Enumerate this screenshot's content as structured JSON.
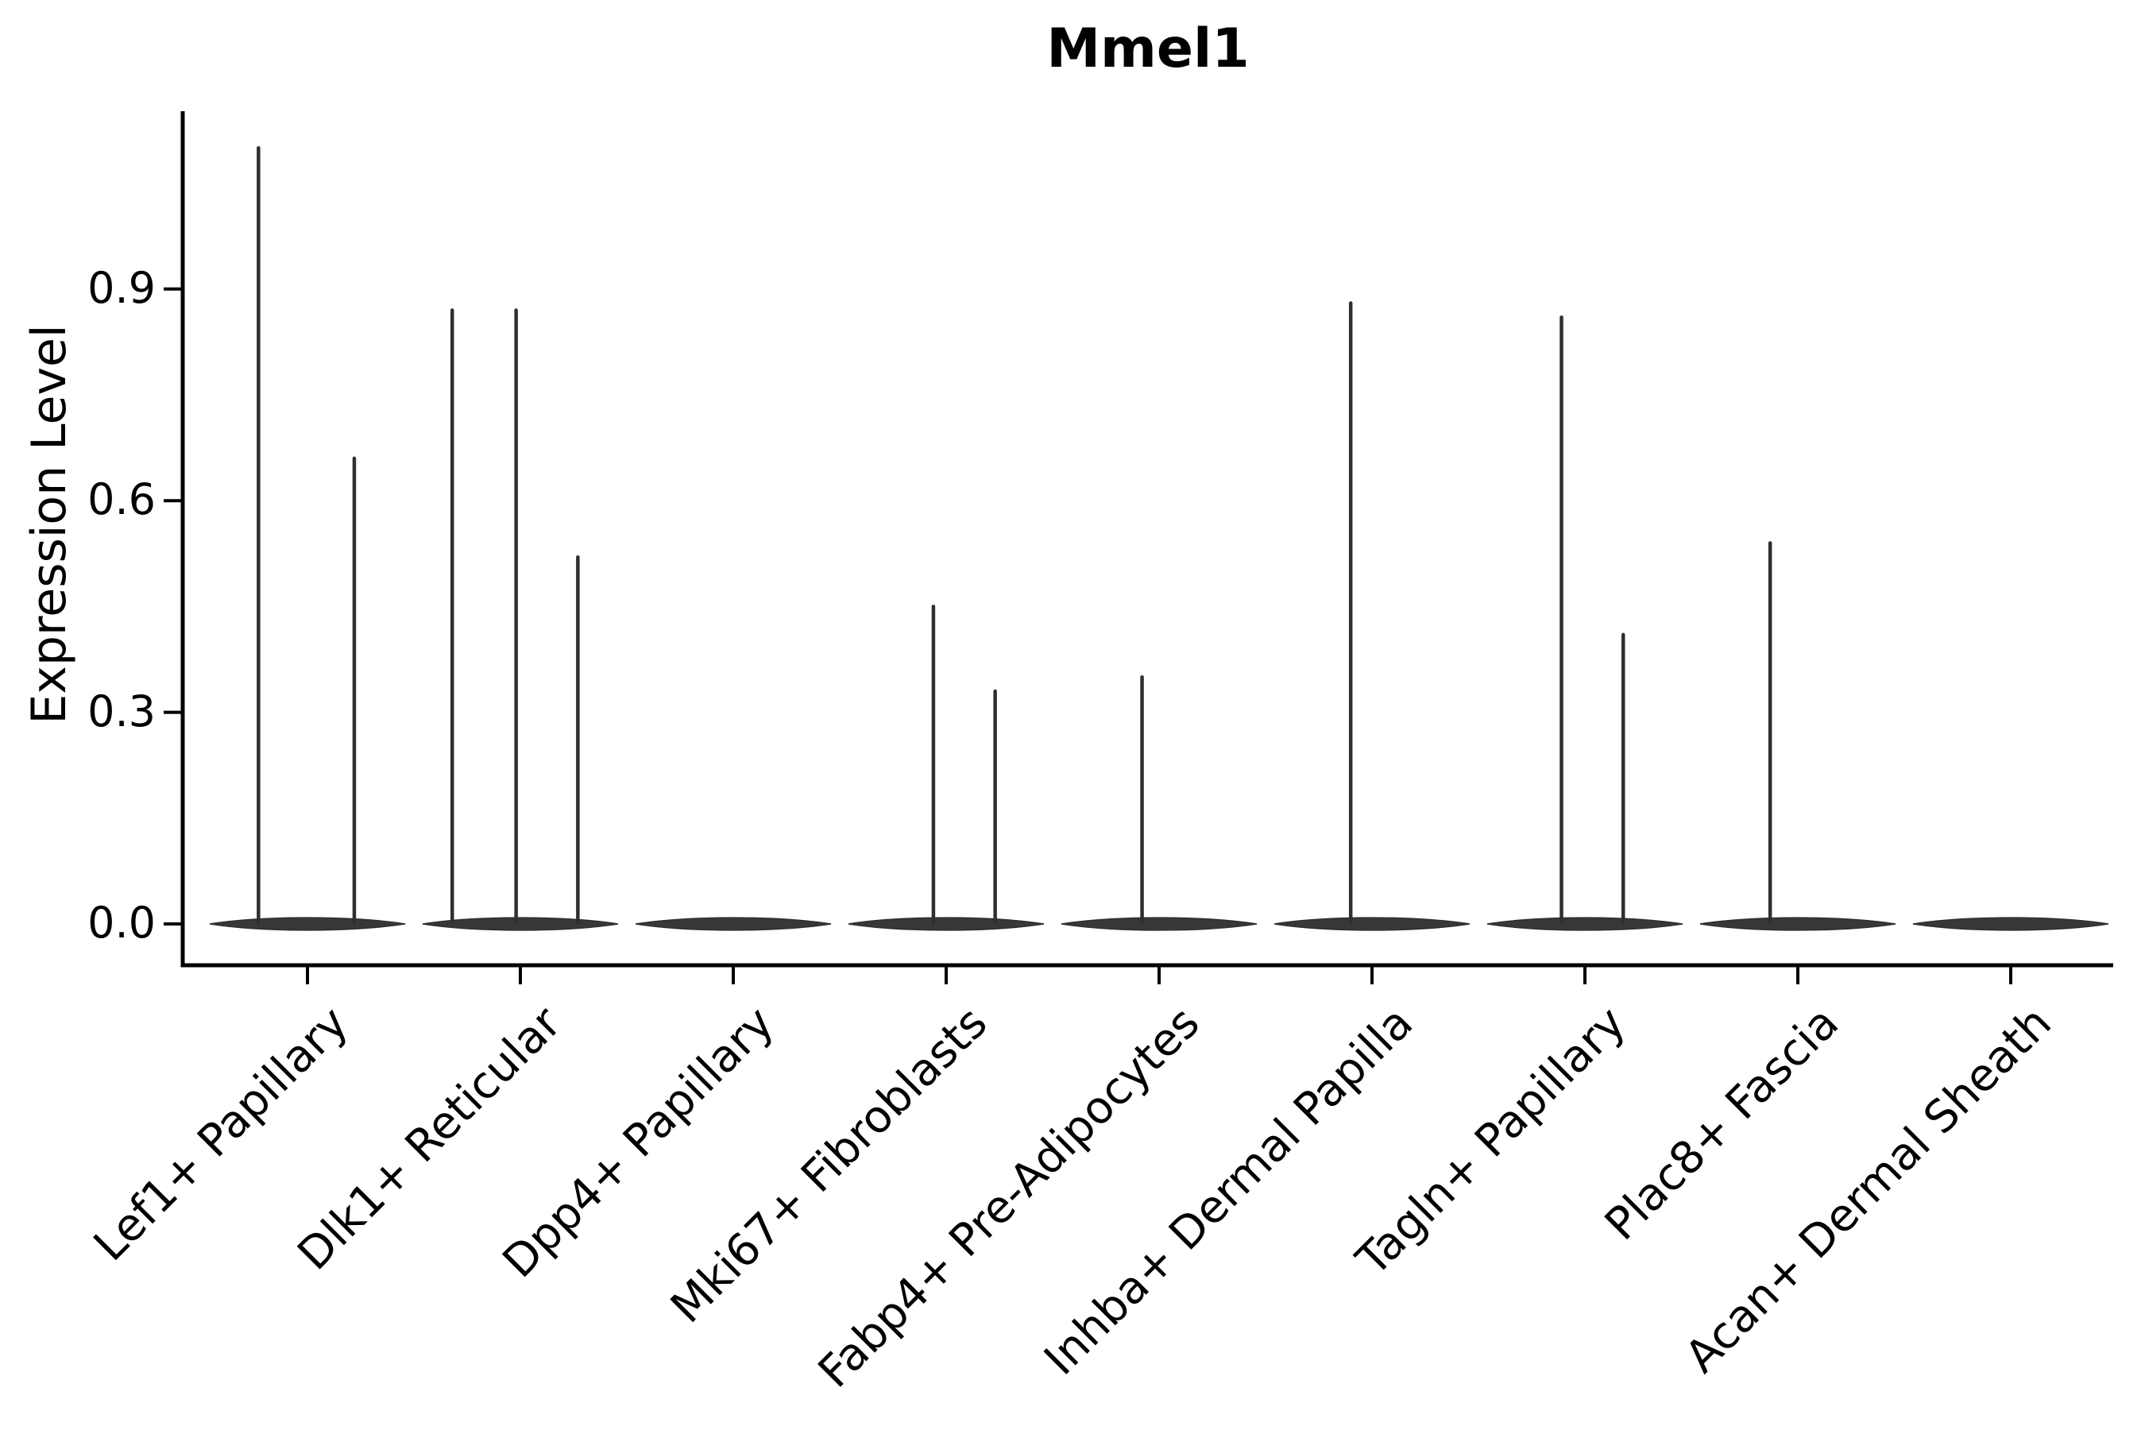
{
  "figure": {
    "background": "#ffffff",
    "text_color": "#000000",
    "violin_fill_color": "#383838",
    "spike_color": "#2f2f2f",
    "axis_color": "#000000"
  },
  "chart_data": {
    "type": "violin",
    "title": "Mmel1",
    "ylabel": "Expression Level",
    "xlabel": "",
    "grid": false,
    "legend": "none",
    "ylim": [
      -0.05,
      1.19
    ],
    "yticks": [
      {
        "label": "0.0",
        "value": 0.0
      },
      {
        "label": "0.3",
        "value": 0.3
      },
      {
        "label": "0.6",
        "value": 0.6
      },
      {
        "label": "0.9",
        "value": 0.9
      }
    ],
    "categories": [
      {
        "label": "Lef1+ Papillary",
        "baseline_violin_at_zero": true,
        "spikes": [
          {
            "offset": -0.23,
            "value": 1.1
          },
          {
            "offset": 0.22,
            "value": 0.66
          }
        ]
      },
      {
        "label": "Dlk1+ Reticular",
        "baseline_violin_at_zero": true,
        "spikes": [
          {
            "offset": -0.32,
            "value": 0.87
          },
          {
            "offset": -0.02,
            "value": 0.87
          },
          {
            "offset": 0.27,
            "value": 0.52
          }
        ]
      },
      {
        "label": "Dpp4+ Papillary",
        "baseline_violin_at_zero": true,
        "spikes": []
      },
      {
        "label": "Mki67+ Fibroblasts",
        "baseline_violin_at_zero": true,
        "spikes": [
          {
            "offset": -0.06,
            "value": 0.45
          },
          {
            "offset": 0.23,
            "value": 0.33
          }
        ]
      },
      {
        "label": "Fabp4+ Pre-Adipocytes",
        "baseline_violin_at_zero": true,
        "spikes": [
          {
            "offset": -0.08,
            "value": 0.35
          }
        ]
      },
      {
        "label": "Inhba+ Dermal Papilla",
        "baseline_violin_at_zero": true,
        "spikes": [
          {
            "offset": -0.1,
            "value": 0.88
          }
        ]
      },
      {
        "label": "Tagln+ Papillary",
        "baseline_violin_at_zero": true,
        "spikes": [
          {
            "offset": -0.11,
            "value": 0.86
          },
          {
            "offset": 0.18,
            "value": 0.41
          }
        ]
      },
      {
        "label": "Plac8+ Fascia",
        "baseline_violin_at_zero": true,
        "spikes": [
          {
            "offset": -0.13,
            "value": 0.54
          }
        ]
      },
      {
        "label": "Acan+ Dermal Sheath",
        "baseline_violin_at_zero": true,
        "spikes": []
      }
    ]
  }
}
